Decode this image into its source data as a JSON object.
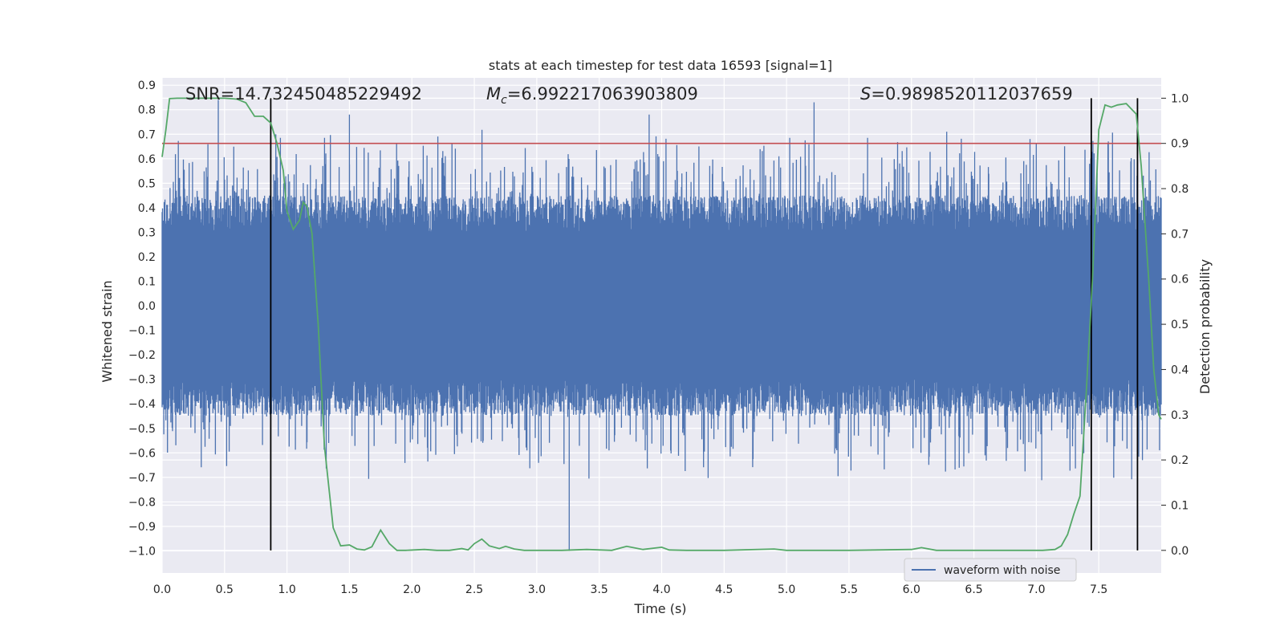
{
  "chart_data": {
    "type": "line",
    "title": "stats at each timestep for test data 16593 [signal=1]",
    "xlabel": "Time (s)",
    "ylabel": "Whitened strain",
    "y2label": "Detection probability",
    "xlim": [
      0.0,
      8.0
    ],
    "ylim": [
      -1.09,
      0.93
    ],
    "y2lim": [
      -0.05,
      1.045
    ],
    "x_ticks": [
      0.0,
      0.5,
      1.0,
      1.5,
      2.0,
      2.5,
      3.0,
      3.5,
      4.0,
      4.5,
      5.0,
      5.5,
      6.0,
      6.5,
      7.0,
      7.5
    ],
    "x_tick_labels": [
      "0.0",
      "0.5",
      "1.0",
      "1.5",
      "2.0",
      "2.5",
      "3.0",
      "3.5",
      "4.0",
      "4.5",
      "5.0",
      "5.5",
      "6.0",
      "6.5",
      "7.0",
      "7.5"
    ],
    "y_ticks": [
      0.9,
      0.8,
      0.7,
      0.6,
      0.5,
      0.4,
      0.3,
      0.2,
      0.1,
      0.0,
      -0.1,
      -0.2,
      -0.3,
      -0.4,
      -0.5,
      -0.6,
      -0.7,
      -0.8,
      -0.9,
      -1.0
    ],
    "y_tick_labels": [
      "0.9",
      "0.8",
      "0.7",
      "0.6",
      "0.5",
      "0.4",
      "0.3",
      "0.2",
      "0.1",
      "0.0",
      "−0.1",
      "−0.2",
      "−0.3",
      "−0.4",
      "−0.5",
      "−0.6",
      "−0.7",
      "−0.8",
      "−0.9",
      "−1.0"
    ],
    "y2_ticks": [
      1.0,
      0.9,
      0.8,
      0.7,
      0.6,
      0.5,
      0.4,
      0.3,
      0.2,
      0.1,
      0.0
    ],
    "y2_tick_labels": [
      "1.0",
      "0.9",
      "0.8",
      "0.7",
      "0.6",
      "0.5",
      "0.4",
      "0.3",
      "0.2",
      "0.1",
      "0.0"
    ],
    "annotations": {
      "snr": "SNR=14.732450485229492",
      "mc_symbol": "M",
      "mc_sub": "c",
      "mc_value": "=6.992217063903809",
      "s_symbol": "S",
      "s_value": "=0.9898520112037659"
    },
    "threshold": 0.9,
    "vlines": [
      0.87,
      7.44,
      7.81
    ],
    "grid": true,
    "legend": {
      "label": "waveform with noise",
      "placement": "lower-right"
    },
    "series": [
      {
        "name": "waveform with noise",
        "axis": "left",
        "style": "dense noisy waveform",
        "envelope_upper": 0.45,
        "envelope_lower": -0.45,
        "max": 0.84,
        "min": -1.0
      },
      {
        "axis": "right",
        "x": [
          0.0,
          0.03,
          0.06,
          0.12,
          0.2,
          0.3,
          0.4,
          0.5,
          0.6,
          0.67,
          0.74,
          0.81,
          0.87,
          0.92,
          0.97,
          1.0,
          1.05,
          1.1,
          1.13,
          1.16,
          1.2,
          1.25,
          1.3,
          1.37,
          1.43,
          1.5,
          1.56,
          1.62,
          1.68,
          1.75,
          1.82,
          1.88,
          1.95,
          2.1,
          2.2,
          2.3,
          2.4,
          2.45,
          2.5,
          2.56,
          2.62,
          2.7,
          2.75,
          2.82,
          2.9,
          3.0,
          3.2,
          3.4,
          3.6,
          3.72,
          3.85,
          4.0,
          4.06,
          4.2,
          4.5,
          4.9,
          5.0,
          5.5,
          6.0,
          6.08,
          6.2,
          6.5,
          6.9,
          7.05,
          7.15,
          7.2,
          7.25,
          7.3,
          7.35,
          7.4,
          7.45,
          7.5,
          7.55,
          7.6,
          7.65,
          7.72,
          7.8,
          7.84,
          7.9,
          7.94,
          7.98,
          8.0
        ],
        "y": [
          0.87,
          0.93,
          0.999,
          1.0,
          1.0,
          1.0,
          1.0,
          1.0,
          0.998,
          0.99,
          0.96,
          0.96,
          0.945,
          0.9,
          0.84,
          0.75,
          0.71,
          0.73,
          0.77,
          0.76,
          0.7,
          0.5,
          0.23,
          0.05,
          0.01,
          0.012,
          0.003,
          0.001,
          0.008,
          0.045,
          0.015,
          0.0,
          0.0,
          0.002,
          0.0,
          0.0,
          0.004,
          0.001,
          0.015,
          0.025,
          0.01,
          0.004,
          0.009,
          0.003,
          0.0,
          0.0,
          0.0,
          0.002,
          0.0,
          0.009,
          0.002,
          0.007,
          0.001,
          0.0,
          0.0,
          0.003,
          0.0,
          0.0,
          0.002,
          0.006,
          0.0,
          0.0,
          0.0,
          0.0,
          0.002,
          0.01,
          0.035,
          0.08,
          0.12,
          0.35,
          0.6,
          0.93,
          0.985,
          0.98,
          0.985,
          0.988,
          0.965,
          0.85,
          0.6,
          0.4,
          0.3,
          0.29
        ]
      }
    ]
  },
  "colors": {
    "waveform": "#4c72b0",
    "probability": "#55a868",
    "threshold": "#c44e52",
    "vline": "#000000",
    "plot_bg": "#eaeaf2",
    "grid": "#ffffff"
  }
}
